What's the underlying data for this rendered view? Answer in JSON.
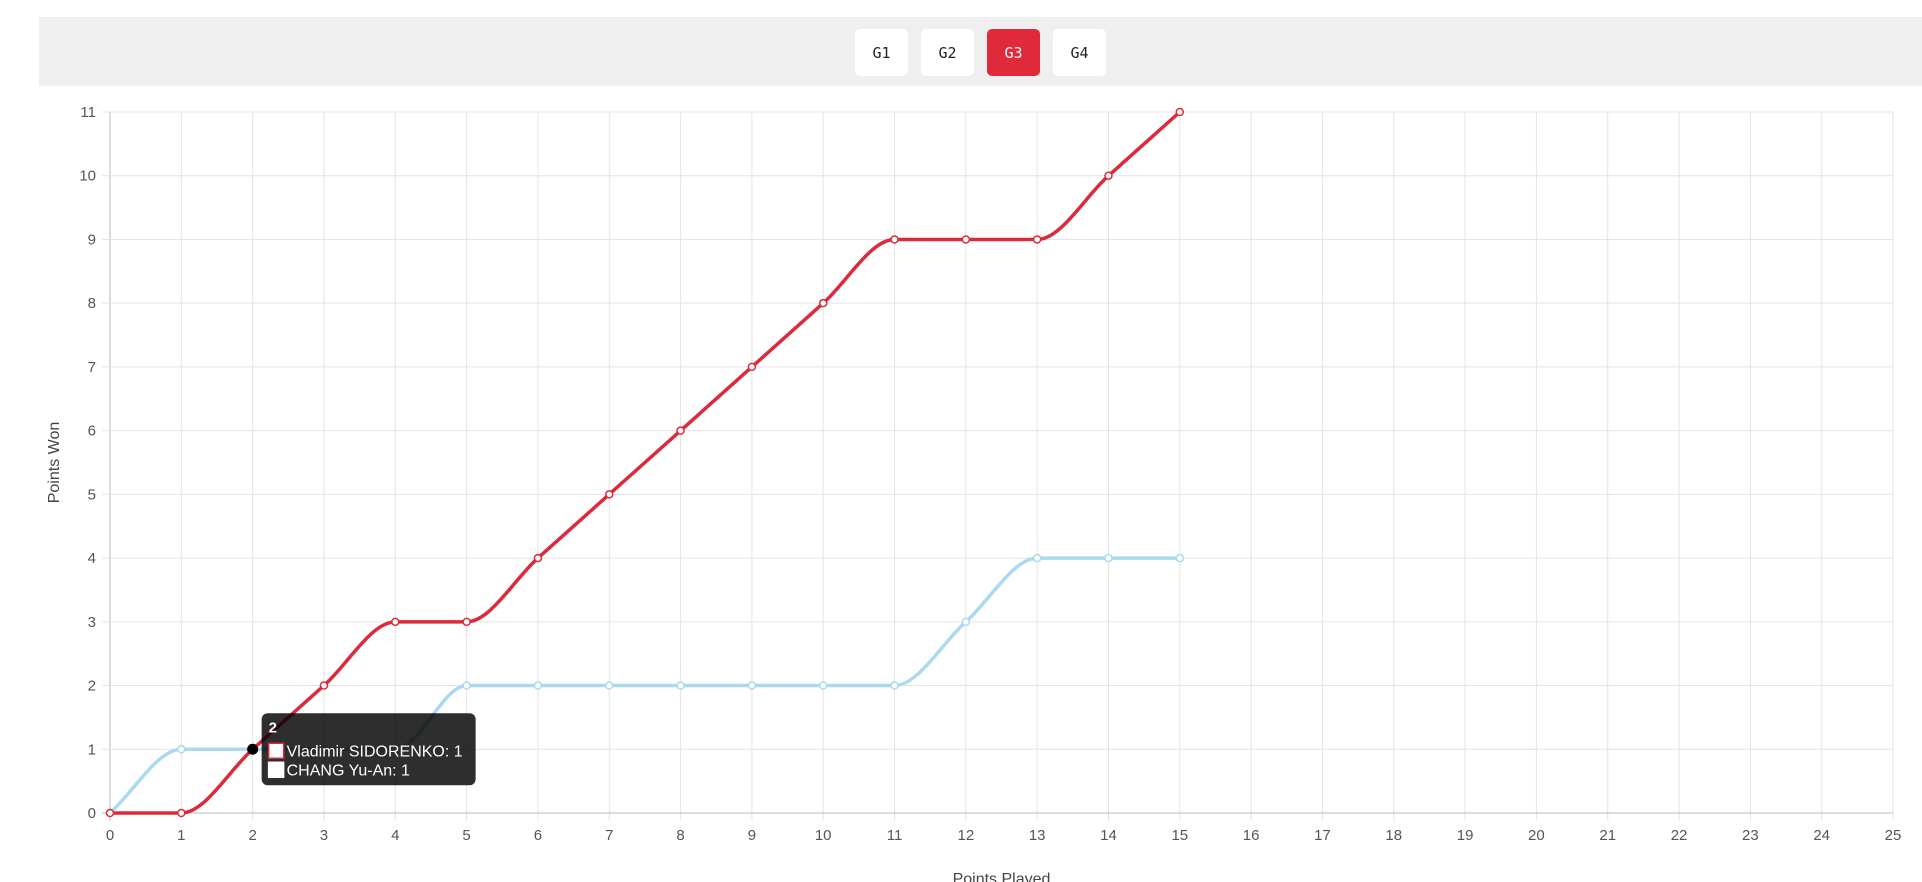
{
  "tabs": [
    {
      "label": "G1",
      "active": false
    },
    {
      "label": "G2",
      "active": false
    },
    {
      "label": "G3",
      "active": true
    },
    {
      "label": "G4",
      "active": false
    }
  ],
  "colors": {
    "accent": "#e0293b",
    "series_a": "#dc2a3b",
    "series_b": "#abd9ef",
    "grid": "#e4e4e4"
  },
  "chart_data": {
    "type": "line",
    "xlabel": "Points Played",
    "ylabel": "Points Won",
    "xlim": [
      0,
      25
    ],
    "ylim": [
      0,
      11
    ],
    "grid": true,
    "x": [
      0,
      1,
      2,
      3,
      4,
      5,
      6,
      7,
      8,
      9,
      10,
      11,
      12,
      13,
      14,
      15
    ],
    "series": [
      {
        "name": "Vladimir SIDORENKO",
        "color": "#dc2a3b",
        "values": [
          0,
          0,
          1,
          2,
          3,
          3,
          4,
          5,
          6,
          7,
          8,
          9,
          9,
          9,
          10,
          11
        ]
      },
      {
        "name": "CHANG Yu-An",
        "color": "#abd9ef",
        "values": [
          0,
          1,
          1,
          1,
          1,
          2,
          2,
          2,
          2,
          2,
          2,
          2,
          3,
          4,
          4,
          4
        ]
      }
    ],
    "tooltip": {
      "x": 2,
      "title": "2",
      "lines": [
        "Vladimir SIDORENKO: 1",
        "CHANG Yu-An: 1"
      ]
    }
  }
}
